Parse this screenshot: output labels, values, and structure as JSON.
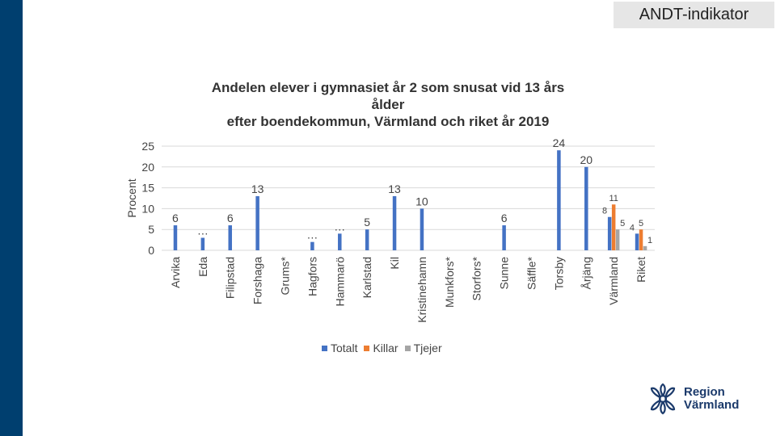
{
  "header": {
    "tag": "ANDT-indikator"
  },
  "logo": {
    "text": "Region\nVärmland",
    "icon": "snowflake-flower-icon",
    "color": "#1b3a6b"
  },
  "colors": {
    "totalt": "#4472c4",
    "killar": "#ed7d31",
    "tjejer": "#a5a5a5",
    "sidebar": "#003f6f"
  },
  "chart_data": {
    "type": "bar",
    "title": "Andelen elever i gymnasiet år 2 som snusat vid 13 års\nålder\nefter boendekommun, Värmland och riket år 2019",
    "ylabel": "Procent",
    "xlabel": "",
    "ylim": [
      0,
      25
    ],
    "yticks": [
      0,
      5,
      10,
      15,
      20,
      25
    ],
    "grid": true,
    "legend_position": "bottom",
    "categories": [
      "Arvika",
      "Eda",
      "Filipstad",
      "Forshaga",
      "Grums*",
      "Hagfors",
      "Hammarö",
      "Karlstad",
      "Kil",
      "Kristinehamn",
      "Munkfors*",
      "Storfors*",
      "Sunne",
      "Säffle*",
      "Torsby",
      "Årjäng",
      "Värmland",
      "Riket"
    ],
    "series": [
      {
        "name": "Totalt",
        "values": [
          6,
          3,
          6,
          13,
          null,
          2,
          4,
          5,
          13,
          10,
          null,
          null,
          6,
          null,
          24,
          20,
          8,
          4
        ],
        "labels": [
          "6",
          "…",
          "6",
          "13",
          "",
          "…",
          "…",
          "5",
          "13",
          "10",
          "",
          "",
          "6",
          "",
          "24",
          "20",
          "8",
          "4"
        ]
      },
      {
        "name": "Killar",
        "values": [
          null,
          null,
          null,
          null,
          null,
          null,
          null,
          null,
          null,
          null,
          null,
          null,
          null,
          null,
          null,
          null,
          11,
          5
        ],
        "labels": [
          "",
          "",
          "",
          "",
          "",
          "",
          "",
          "",
          "",
          "",
          "",
          "",
          "",
          "",
          "",
          "",
          "11",
          "5"
        ]
      },
      {
        "name": "Tjejer",
        "values": [
          null,
          null,
          null,
          null,
          null,
          null,
          null,
          null,
          null,
          null,
          null,
          null,
          null,
          null,
          null,
          null,
          5,
          1
        ],
        "labels": [
          "",
          "",
          "",
          "",
          "",
          "",
          "",
          "",
          "",
          "",
          "",
          "",
          "",
          "",
          "",
          "",
          "5",
          "1"
        ]
      }
    ]
  }
}
